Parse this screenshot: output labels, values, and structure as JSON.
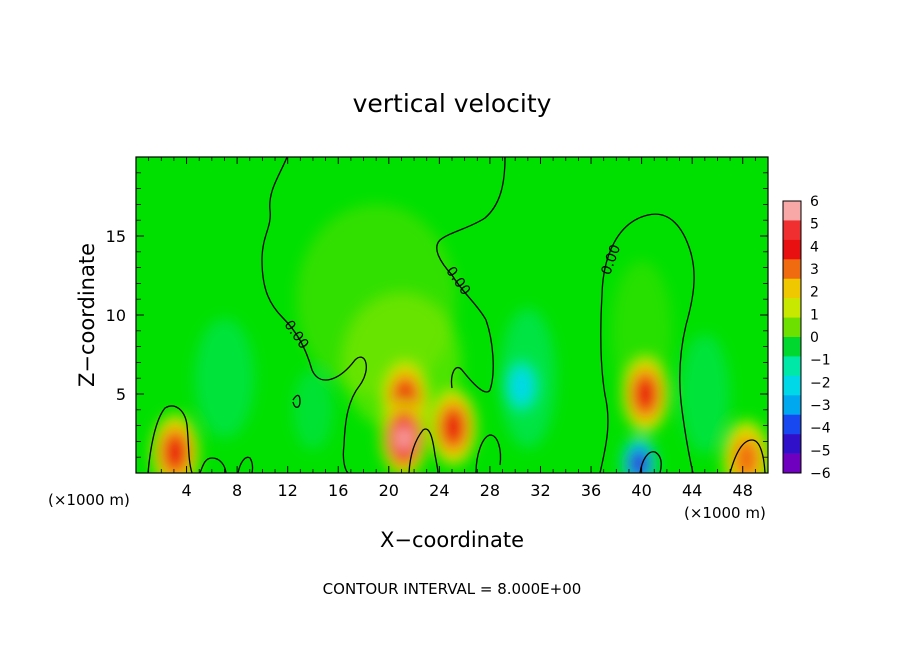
{
  "chart_data": {
    "type": "heatmap",
    "title": "vertical velocity",
    "xlabel": "X−coordinate",
    "ylabel": "Z−coordinate",
    "x_unit_left": "(×1000 m)",
    "x_unit_right": "(×1000 m)",
    "xlim": [
      0,
      50
    ],
    "ylim": [
      0,
      20
    ],
    "xticks": [
      4,
      8,
      12,
      16,
      20,
      24,
      28,
      32,
      36,
      40,
      44,
      48
    ],
    "yticks": [
      5,
      10,
      15
    ],
    "colorbar": {
      "range": [
        -6,
        6
      ],
      "ticks": [
        6,
        5,
        4,
        3,
        2,
        1,
        0,
        -1,
        -2,
        -3,
        -4,
        -5,
        -6
      ],
      "tick_labels": [
        "6",
        "5",
        "4",
        "3",
        "2",
        "1",
        "0",
        "−1",
        "−2",
        "−3",
        "−4",
        "−5",
        "−6"
      ],
      "colors": [
        "#f9a8a8",
        "#f03030",
        "#e81010",
        "#f06a10",
        "#f0c800",
        "#c8e800",
        "#6ee000",
        "#00d830",
        "#00e8a8",
        "#00d8e8",
        "#00a8f0",
        "#1848f0",
        "#3010c8",
        "#7000c0"
      ]
    },
    "contour_labels": [
      {
        "text": "0.00",
        "x": 12.4,
        "z": 8.6
      },
      {
        "text": "0.00",
        "x": 25.2,
        "z": 12.0
      },
      {
        "text": "0.00",
        "x": 37.9,
        "z": 13.4
      }
    ],
    "features": [
      {
        "x": 21.3,
        "z": 4.7,
        "value": 4
      },
      {
        "x": 21.2,
        "z": 2.2,
        "value": 6
      },
      {
        "x": 25.1,
        "z": 2.9,
        "value": 4
      },
      {
        "x": 40.3,
        "z": 5.0,
        "value": 4
      },
      {
        "x": 3.1,
        "z": 1.3,
        "value": 4
      },
      {
        "x": 30.5,
        "z": 5.5,
        "value": -2
      },
      {
        "x": 39.8,
        "z": 0.6,
        "value": -5
      },
      {
        "x": 48.3,
        "z": 0.9,
        "value": 3
      }
    ],
    "footer": "CONTOUR INTERVAL = 8.000E+00"
  }
}
